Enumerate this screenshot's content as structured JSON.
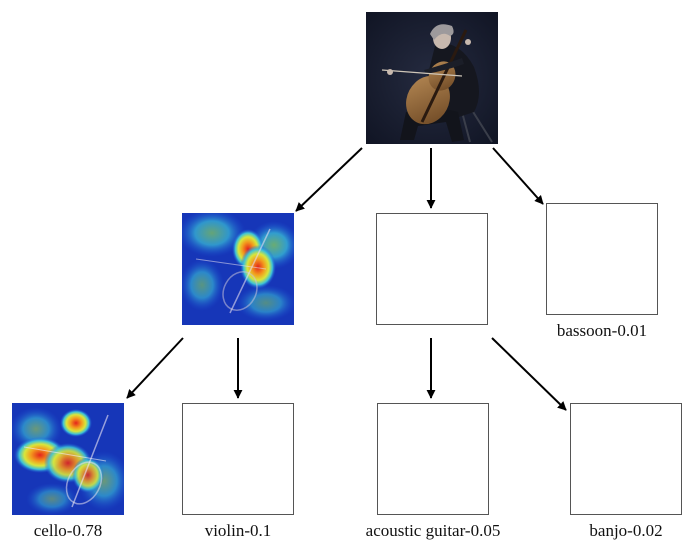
{
  "nodes": {
    "root": {
      "image": "cellist-photo"
    },
    "heatmap_mid": {
      "image": "cello-heatmap"
    },
    "heatmap_leaf": {
      "image": "cello-heatmap"
    }
  },
  "labels": {
    "bassoon": "bassoon-0.01",
    "cello": "cello-0.78",
    "violin": "violin-0.1",
    "acoustic_guitar": "acoustic guitar-0.05",
    "banjo": "banjo-0.02"
  },
  "colors": {
    "arrow": "#000000",
    "box_border": "#555555",
    "photo_background": "#141a2e",
    "heatmap_cold": "#1636b8",
    "heatmap_hot": "#e4231c"
  }
}
